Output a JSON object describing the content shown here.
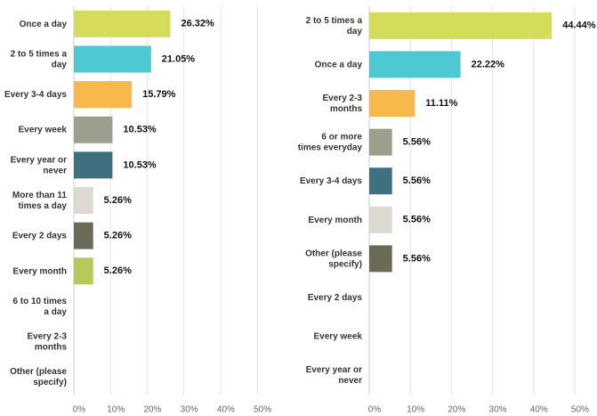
{
  "chart_data": [
    {
      "type": "bar",
      "categories": [
        "Once a day",
        "2 to 5 times a day",
        "Every 3-4 days",
        "Every week",
        "Every year or never",
        "More than 11 times a day",
        "Every 2 days",
        "Every month",
        "6 to 10 times a day",
        "Every 2-3 months",
        "Other (please specify)"
      ],
      "values": [
        26.32,
        21.05,
        15.79,
        10.53,
        10.53,
        5.26,
        5.26,
        5.26,
        0,
        0,
        0
      ],
      "value_labels": [
        "26.32%",
        "21.05%",
        "15.79%",
        "10.53%",
        "10.53%",
        "5.26%",
        "5.26%",
        "5.26%",
        null,
        null,
        null
      ],
      "colors": [
        "#d4dc5a",
        "#4ec9d3",
        "#f8b94c",
        "#9c9e8e",
        "#3f7080",
        "#dcdad0",
        "#6b6a57",
        "#b6c95a",
        "#999999",
        "#999999",
        "#999999"
      ],
      "xlim": [
        0,
        57
      ],
      "xticks": [
        {
          "value": 0,
          "label": "0%"
        },
        {
          "value": 10,
          "label": "10%"
        },
        {
          "value": 20,
          "label": "20%"
        },
        {
          "value": 30,
          "label": "30%"
        },
        {
          "value": 40,
          "label": "40%"
        },
        {
          "value": 50,
          "label": "50%"
        }
      ],
      "grid": true
    },
    {
      "type": "bar",
      "categories": [
        "2 to 5 times a day",
        "Once a day",
        "Every 2-3 months",
        "6 or more times everyday",
        "Every 3-4 days",
        "Every month",
        "Other (please specify)",
        "Every 2 days",
        "Every week",
        "Every year or never"
      ],
      "values": [
        44.44,
        22.22,
        11.11,
        5.56,
        5.56,
        5.56,
        5.56,
        0,
        0,
        0
      ],
      "value_labels": [
        "44.44%",
        "22.22%",
        "11.11%",
        "5.56%",
        "5.56%",
        "5.56%",
        "5.56%",
        null,
        null,
        null
      ],
      "colors": [
        "#d4dc5a",
        "#4ec9d3",
        "#f8b94c",
        "#9c9e8e",
        "#3f7080",
        "#dcdad0",
        "#6b6a57",
        "#999999",
        "#999999",
        "#999999"
      ],
      "xlim": [
        0,
        55
      ],
      "xticks": [
        {
          "value": 0,
          "label": "0%"
        },
        {
          "value": 10,
          "label": "10%"
        },
        {
          "value": 20,
          "label": "20%"
        },
        {
          "value": 30,
          "label": "30%"
        },
        {
          "value": 40,
          "label": "40%"
        },
        {
          "value": 50,
          "label": "50%"
        }
      ],
      "grid": true
    }
  ]
}
